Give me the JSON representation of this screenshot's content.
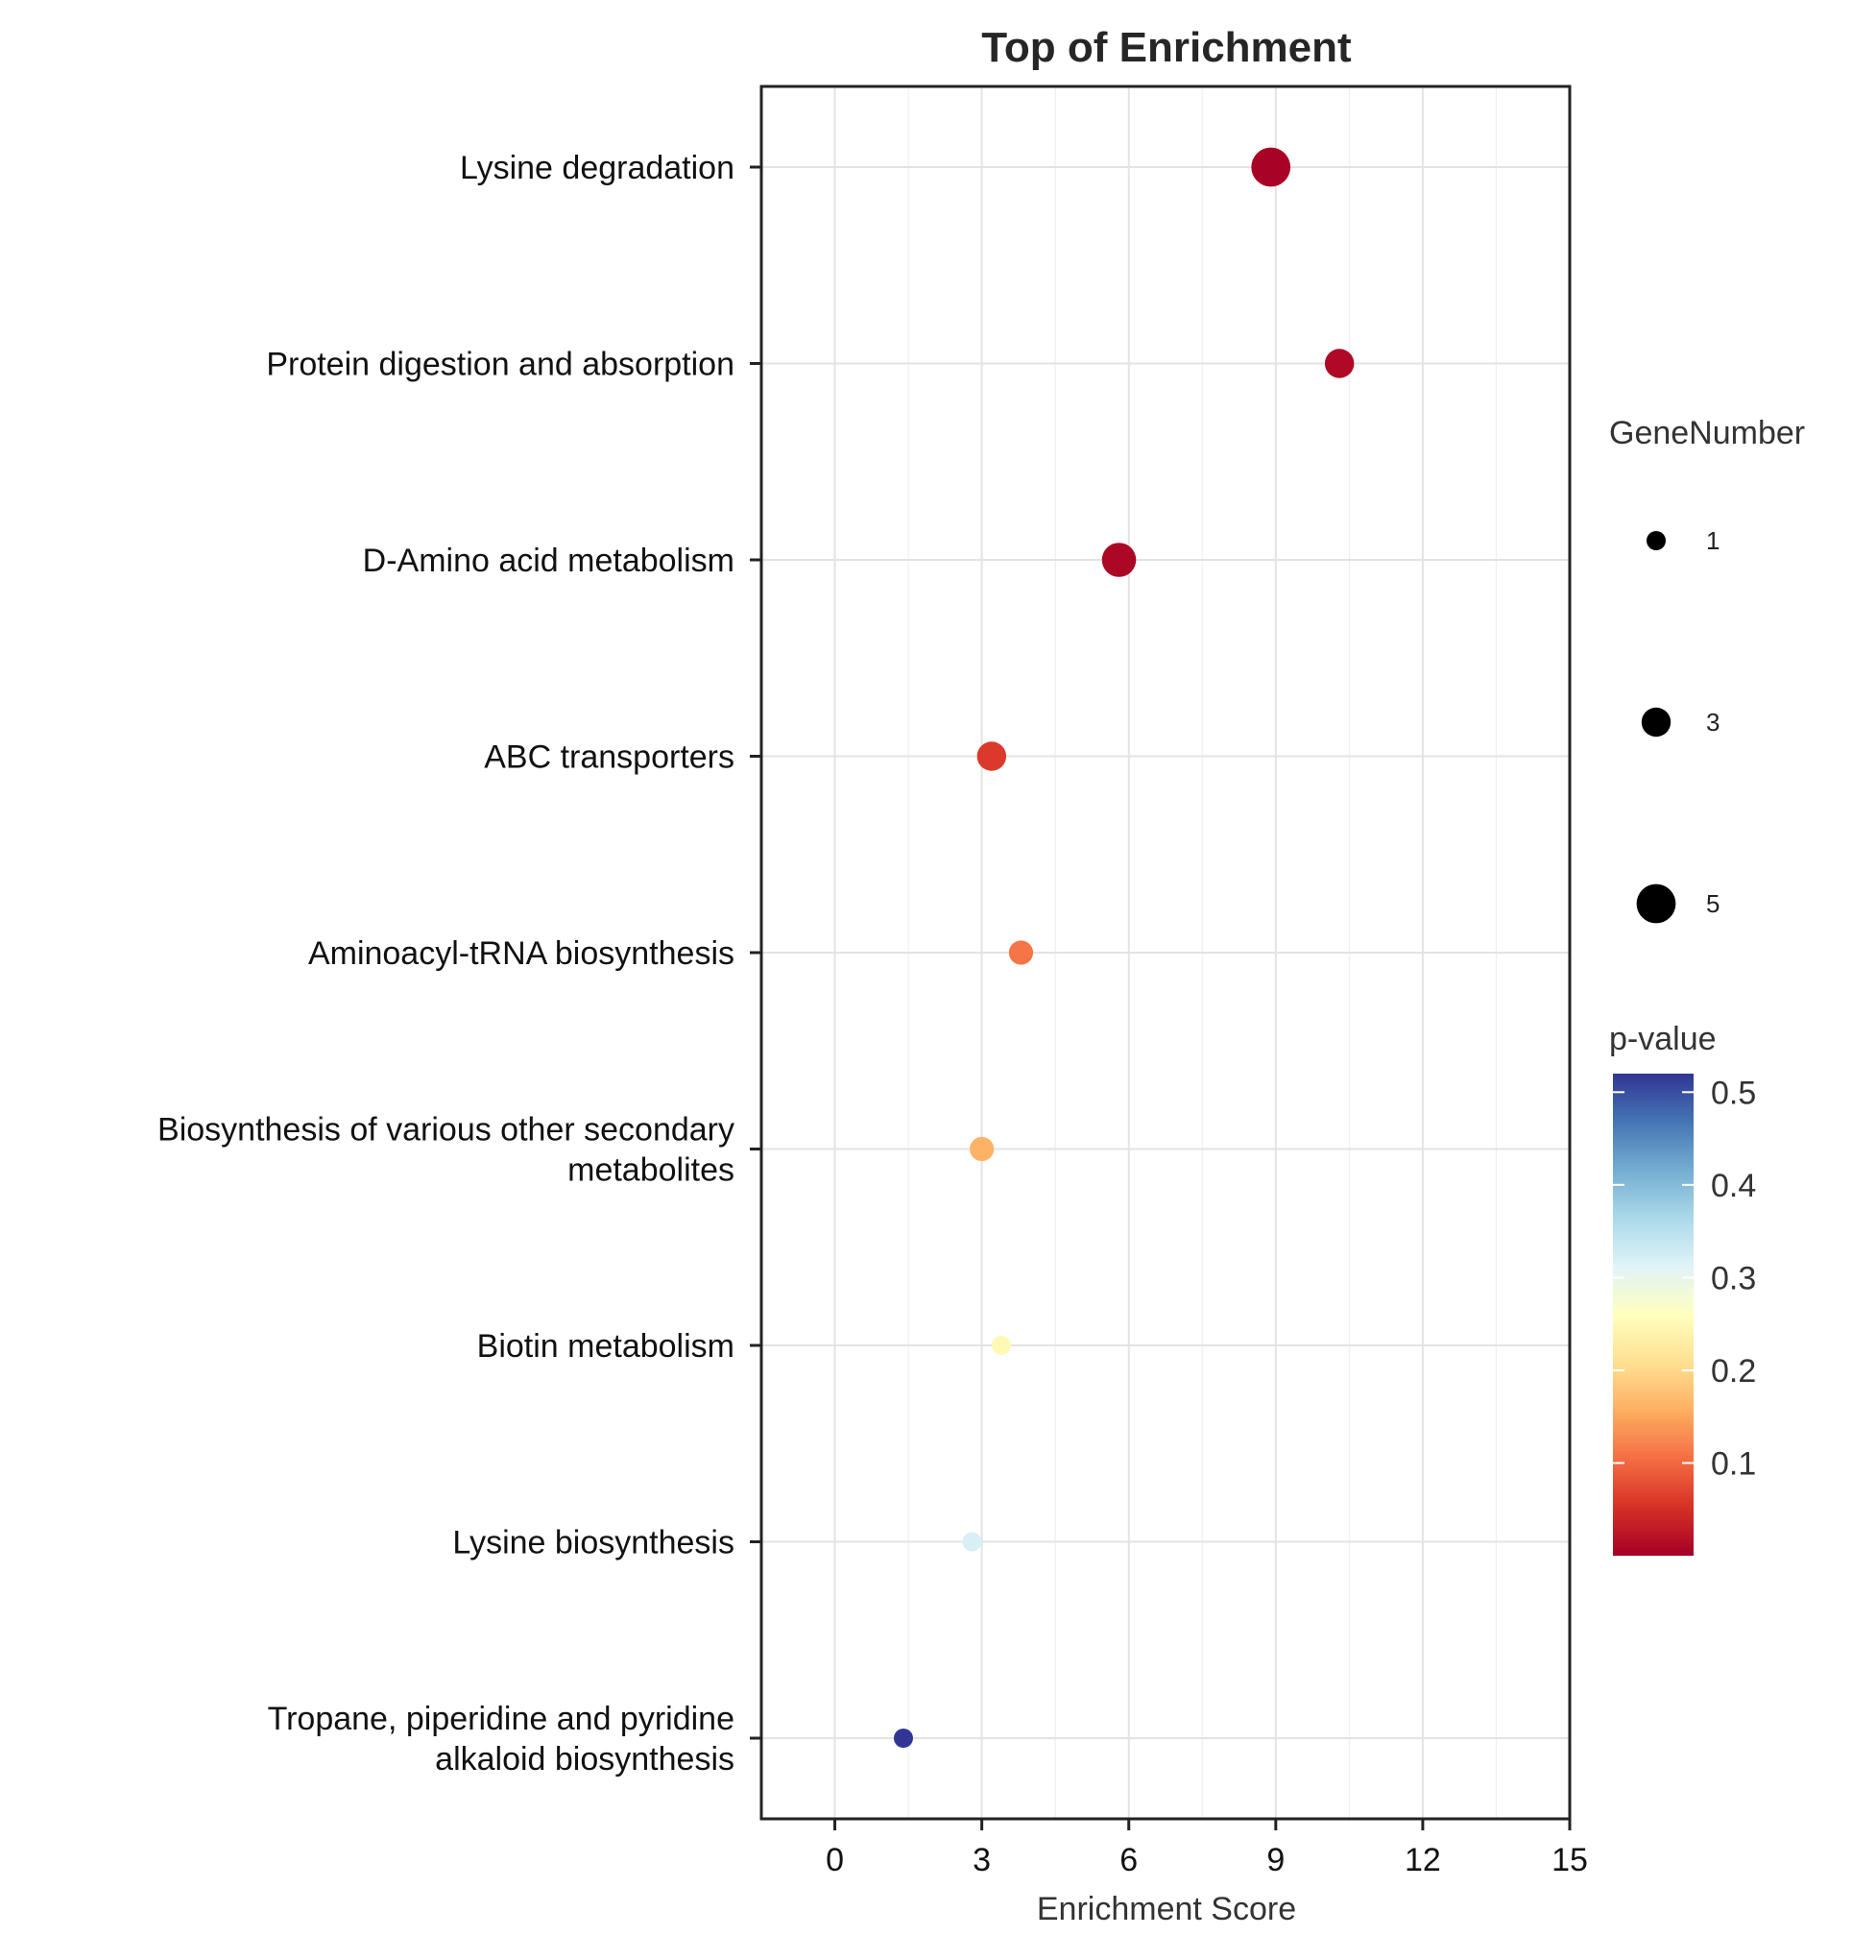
{
  "chart_data": {
    "type": "scatter",
    "title": "Top  of  Enrichment",
    "xlabel": "Enrichment Score",
    "ylabel": "",
    "xlim": [
      -1.5,
      15
    ],
    "xticks": [
      0,
      3,
      6,
      9,
      12,
      15
    ],
    "grid": true,
    "categories": [
      "Lysine degradation",
      "Protein digestion and absorption",
      "D-Amino acid metabolism",
      "ABC transporters",
      "Aminoacyl-tRNA biosynthesis",
      "Biosynthesis of various other secondary metabolites",
      "Biotin metabolism",
      "Lysine biosynthesis",
      "Tropane, piperidine and pyridine alkaloid biosynthesis"
    ],
    "category_lines": [
      [
        "Lysine degradation"
      ],
      [
        "Protein digestion and absorption"
      ],
      [
        "D-Amino acid metabolism"
      ],
      [
        "ABC transporters"
      ],
      [
        "Aminoacyl-tRNA biosynthesis"
      ],
      [
        "Biosynthesis of various other secondary",
        "metabolites"
      ],
      [
        "Biotin metabolism"
      ],
      [
        "Lysine biosynthesis"
      ],
      [
        "Tropane, piperidine and pyridine",
        "alkaloid biosynthesis"
      ]
    ],
    "points": [
      {
        "category": "Lysine degradation",
        "x": 8.9,
        "gene_number": 5,
        "p_value": 0.003
      },
      {
        "category": "Protein digestion and absorption",
        "x": 10.3,
        "gene_number": 3,
        "p_value": 0.01
      },
      {
        "category": "D-Amino acid metabolism",
        "x": 5.8,
        "gene_number": 4,
        "p_value": 0.008
      },
      {
        "category": "ABC transporters",
        "x": 3.2,
        "gene_number": 3,
        "p_value": 0.06
      },
      {
        "category": "Aminoacyl-tRNA biosynthesis",
        "x": 3.8,
        "gene_number": 2,
        "p_value": 0.11
      },
      {
        "category": "Biosynthesis of various other secondary metabolites",
        "x": 3.0,
        "gene_number": 2,
        "p_value": 0.16
      },
      {
        "category": "Biotin metabolism",
        "x": 3.4,
        "gene_number": 1,
        "p_value": 0.25
      },
      {
        "category": "Lysine biosynthesis",
        "x": 2.8,
        "gene_number": 1,
        "p_value": 0.32
      },
      {
        "category": "Tropane, piperidine and pyridine alkaloid biosynthesis",
        "x": 1.4,
        "gene_number": 1,
        "p_value": 0.52
      }
    ],
    "size_legend": {
      "title": "GeneNumber",
      "values": [
        1,
        3,
        5
      ],
      "labels": [
        "1",
        "3",
        "5"
      ]
    },
    "color_legend": {
      "title": "p-value",
      "range": [
        0.0,
        0.52
      ],
      "ticks": [
        0.1,
        0.2,
        0.3,
        0.4,
        0.5
      ],
      "tick_labels": [
        "0.1",
        "0.2",
        "0.3",
        "0.4",
        "0.5"
      ],
      "colormap": "RdYlBu",
      "colors": [
        "#a50026",
        "#d73027",
        "#f46d43",
        "#fdae61",
        "#fee090",
        "#ffffbf",
        "#e0f3f8",
        "#abd9e9",
        "#74add1",
        "#4575b4",
        "#313695"
      ]
    },
    "legend_position": "right"
  }
}
